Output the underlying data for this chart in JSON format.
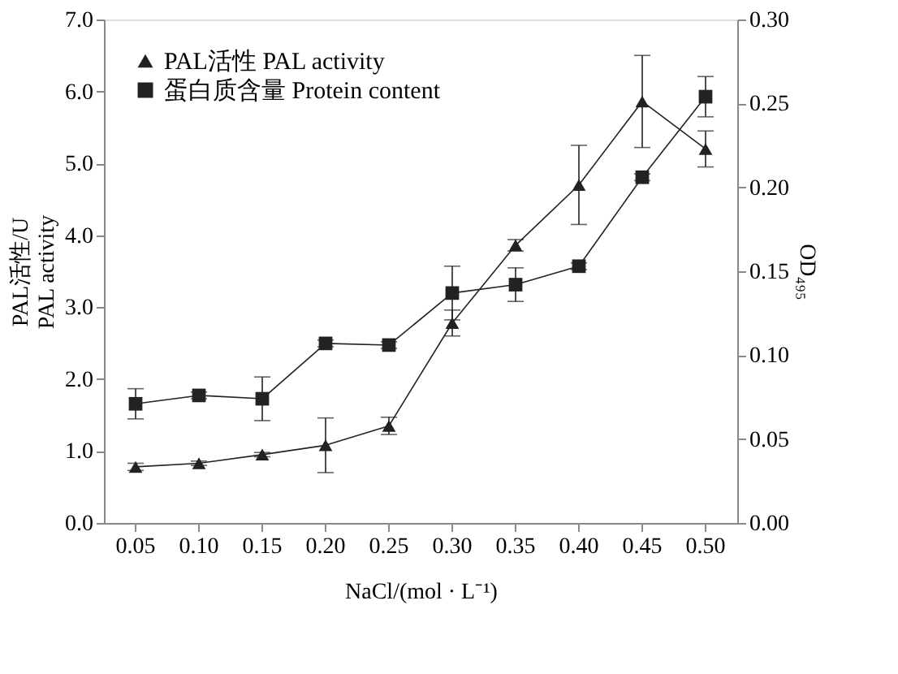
{
  "chart_data": {
    "type": "line",
    "xlabel": "NaCl/(mol · L⁻¹)",
    "ylabel": "PAL活性/U\nPAL activity",
    "y2label": "OD₄₉₅",
    "categories": [
      "0.05",
      "0.10",
      "0.15",
      "0.20",
      "0.25",
      "0.30",
      "0.35",
      "0.40",
      "0.45",
      "0.50"
    ],
    "ylim": [
      0,
      7
    ],
    "yticks": [
      {
        "value": 0,
        "label": "0.0"
      },
      {
        "value": 1,
        "label": "1.0"
      },
      {
        "value": 2,
        "label": "2.0"
      },
      {
        "value": 3,
        "label": "3.0"
      },
      {
        "value": 4,
        "label": "4.0"
      },
      {
        "value": 5,
        "label": "5.0"
      },
      {
        "value": 6,
        "label": "6.0"
      },
      {
        "value": 7,
        "label": "7.0"
      }
    ],
    "y2lim": [
      0,
      0.3
    ],
    "y2ticks": [
      {
        "value": 0,
        "label": "0.00"
      },
      {
        "value": 0.05,
        "label": "0.05"
      },
      {
        "value": 0.1,
        "label": "0.10"
      },
      {
        "value": 0.15,
        "label": "0.15"
      },
      {
        "value": 0.2,
        "label": "0.20"
      },
      {
        "value": 0.25,
        "label": "0.25"
      },
      {
        "value": 0.3,
        "label": "0.30"
      }
    ],
    "grid": false,
    "legend": "top left",
    "line_style": "solid",
    "series": [
      {
        "name": "PAL活性 PAL activity",
        "color": "#222222",
        "marker": "triangle",
        "values": [
          0.78,
          0.83,
          0.95,
          1.08,
          1.35,
          2.78,
          3.86,
          4.7,
          5.86,
          5.2
        ],
        "errors": [
          0.05,
          0.03,
          0.03,
          0.38,
          0.12,
          0.18,
          0.08,
          0.55,
          0.64,
          0.25
        ]
      },
      {
        "name": "蛋白质含量 Protein content",
        "color": "#222222",
        "marker": "square",
        "axis": "y2",
        "values": [
          0.071,
          0.076,
          0.074,
          0.107,
          0.106,
          0.137,
          0.142,
          0.153,
          0.206,
          0.254
        ],
        "errors": [
          0.009,
          0.002,
          0.013,
          0.002,
          0.002,
          0.016,
          0.01,
          0.002,
          0.002,
          0.012
        ]
      }
    ]
  }
}
